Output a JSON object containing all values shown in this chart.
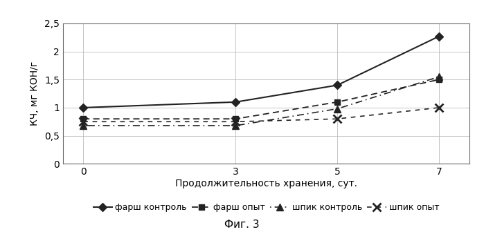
{
  "x": [
    0,
    3,
    5,
    7
  ],
  "farsh_control": [
    1.0,
    1.1,
    1.4,
    2.27
  ],
  "farsh_opyt": [
    0.8,
    0.8,
    1.1,
    1.5
  ],
  "shpik_control": [
    0.68,
    0.68,
    0.98,
    1.55
  ],
  "shpik_opyt": [
    0.75,
    0.75,
    0.8,
    1.0
  ],
  "xlabel": "Продолжительность хранения, сут.",
  "ylabel": "КЧ, мг КОН/г",
  "ylim": [
    0,
    2.5
  ],
  "yticks": [
    0,
    0.5,
    1.0,
    1.5,
    2.0,
    2.5
  ],
  "ytick_labels": [
    "0",
    "0,5",
    "1",
    "1,5",
    "2",
    "2,5"
  ],
  "xticks": [
    0,
    3,
    5,
    7
  ],
  "legend_labels": [
    "фарш контроль",
    "фарш опыт",
    "шпик контроль",
    "шпик опыт"
  ],
  "caption": "Фиг. 3",
  "line_color": "#222222",
  "bg_color": "#ffffff"
}
